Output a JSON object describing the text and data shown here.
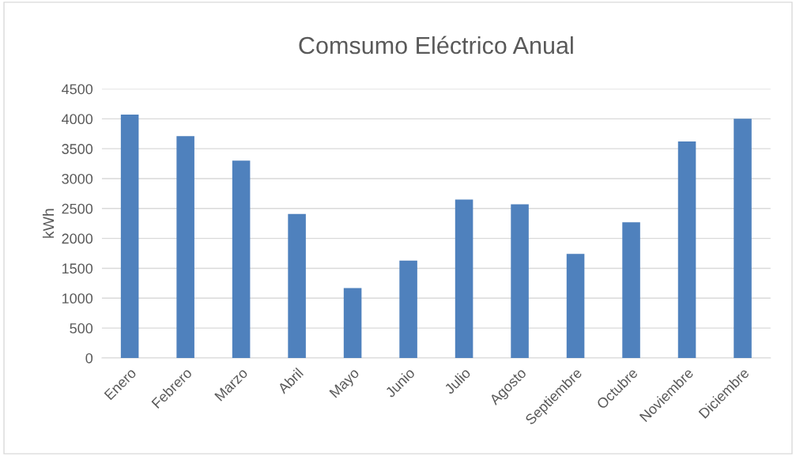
{
  "chart_data": {
    "type": "bar",
    "title": "Comsumo Eléctrico Anual",
    "ylabel": "kWh",
    "categories": [
      "Enero",
      "Febrero",
      "Marzo",
      "Abril",
      "Mayo",
      "Junio",
      "Julio",
      "Agosto",
      "Septiembre",
      "Octubre",
      "Noviembre",
      "Diciembre"
    ],
    "values": [
      4070,
      3710,
      3300,
      2410,
      1170,
      1630,
      2650,
      2570,
      1740,
      2270,
      3620,
      4000
    ],
    "color": "#4f81bd",
    "ylim": [
      0,
      4500
    ],
    "yticks": [
      0,
      500,
      1000,
      1500,
      2000,
      2500,
      3000,
      3500,
      4000,
      4500
    ],
    "grid": "y",
    "legend": false
  }
}
